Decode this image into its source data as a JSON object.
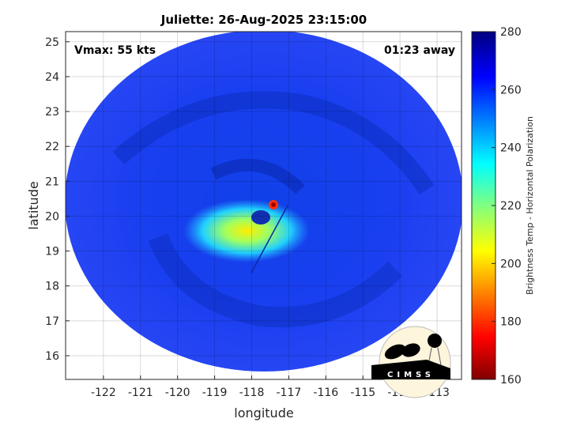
{
  "chart_data": {
    "type": "heatmap",
    "title": "Juliette: 26-Aug-2025 23:15:00",
    "xlabel": "longitude",
    "ylabel": "latitude",
    "xlim": [
      -123.02,
      -112.34
    ],
    "ylim": [
      15.32,
      25.29
    ],
    "xticks": [
      -122,
      -121,
      -120,
      -119,
      -118,
      -117,
      -116,
      -115,
      -114,
      -113
    ],
    "yticks": [
      16,
      17,
      18,
      19,
      20,
      21,
      22,
      23,
      24,
      25
    ],
    "grid": true,
    "annotations": {
      "vmax": "Vmax: 55 kts",
      "away": "01:23 away"
    },
    "storm_center": {
      "lon": -117.8,
      "lat": 19.7
    },
    "colorbar": {
      "label": "Brightness Temp - Horizontal Polarization",
      "range": [
        160,
        280
      ],
      "ticks": [
        160,
        180,
        200,
        220,
        240,
        260,
        280
      ],
      "colormap": "jet"
    },
    "logo": "CIMSS"
  }
}
